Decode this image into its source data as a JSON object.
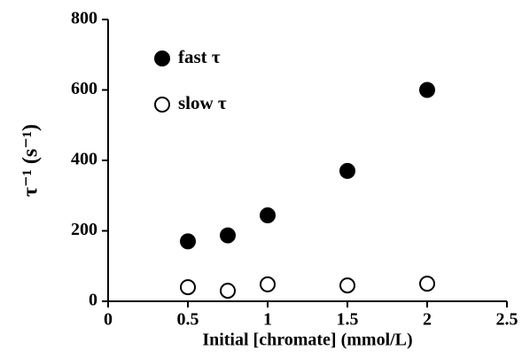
{
  "chart_data": {
    "type": "scatter",
    "x_label": "Initial [chromate] (mmol/L)",
    "y_label": "τ⁻¹ (s⁻¹)",
    "series": [
      {
        "name": "fast τ",
        "color": "#000000",
        "filled": true,
        "x": [
          0.5,
          0.75,
          1.0,
          1.5,
          2.0
        ],
        "values": [
          170,
          187,
          244,
          370,
          600
        ]
      },
      {
        "name": "slow τ",
        "color": "#000000",
        "filled": false,
        "x": [
          0.5,
          0.75,
          1.0,
          1.5,
          2.0
        ],
        "values": [
          40,
          30,
          48,
          45,
          50
        ]
      }
    ],
    "xlim": [
      0,
      2.5
    ],
    "xticks": [
      0,
      0.5,
      1,
      1.5,
      2,
      2.5
    ],
    "ylim": [
      0,
      800
    ],
    "yticks": [
      0,
      200,
      400,
      600,
      800
    ],
    "grid": false,
    "legend": "upper left"
  }
}
